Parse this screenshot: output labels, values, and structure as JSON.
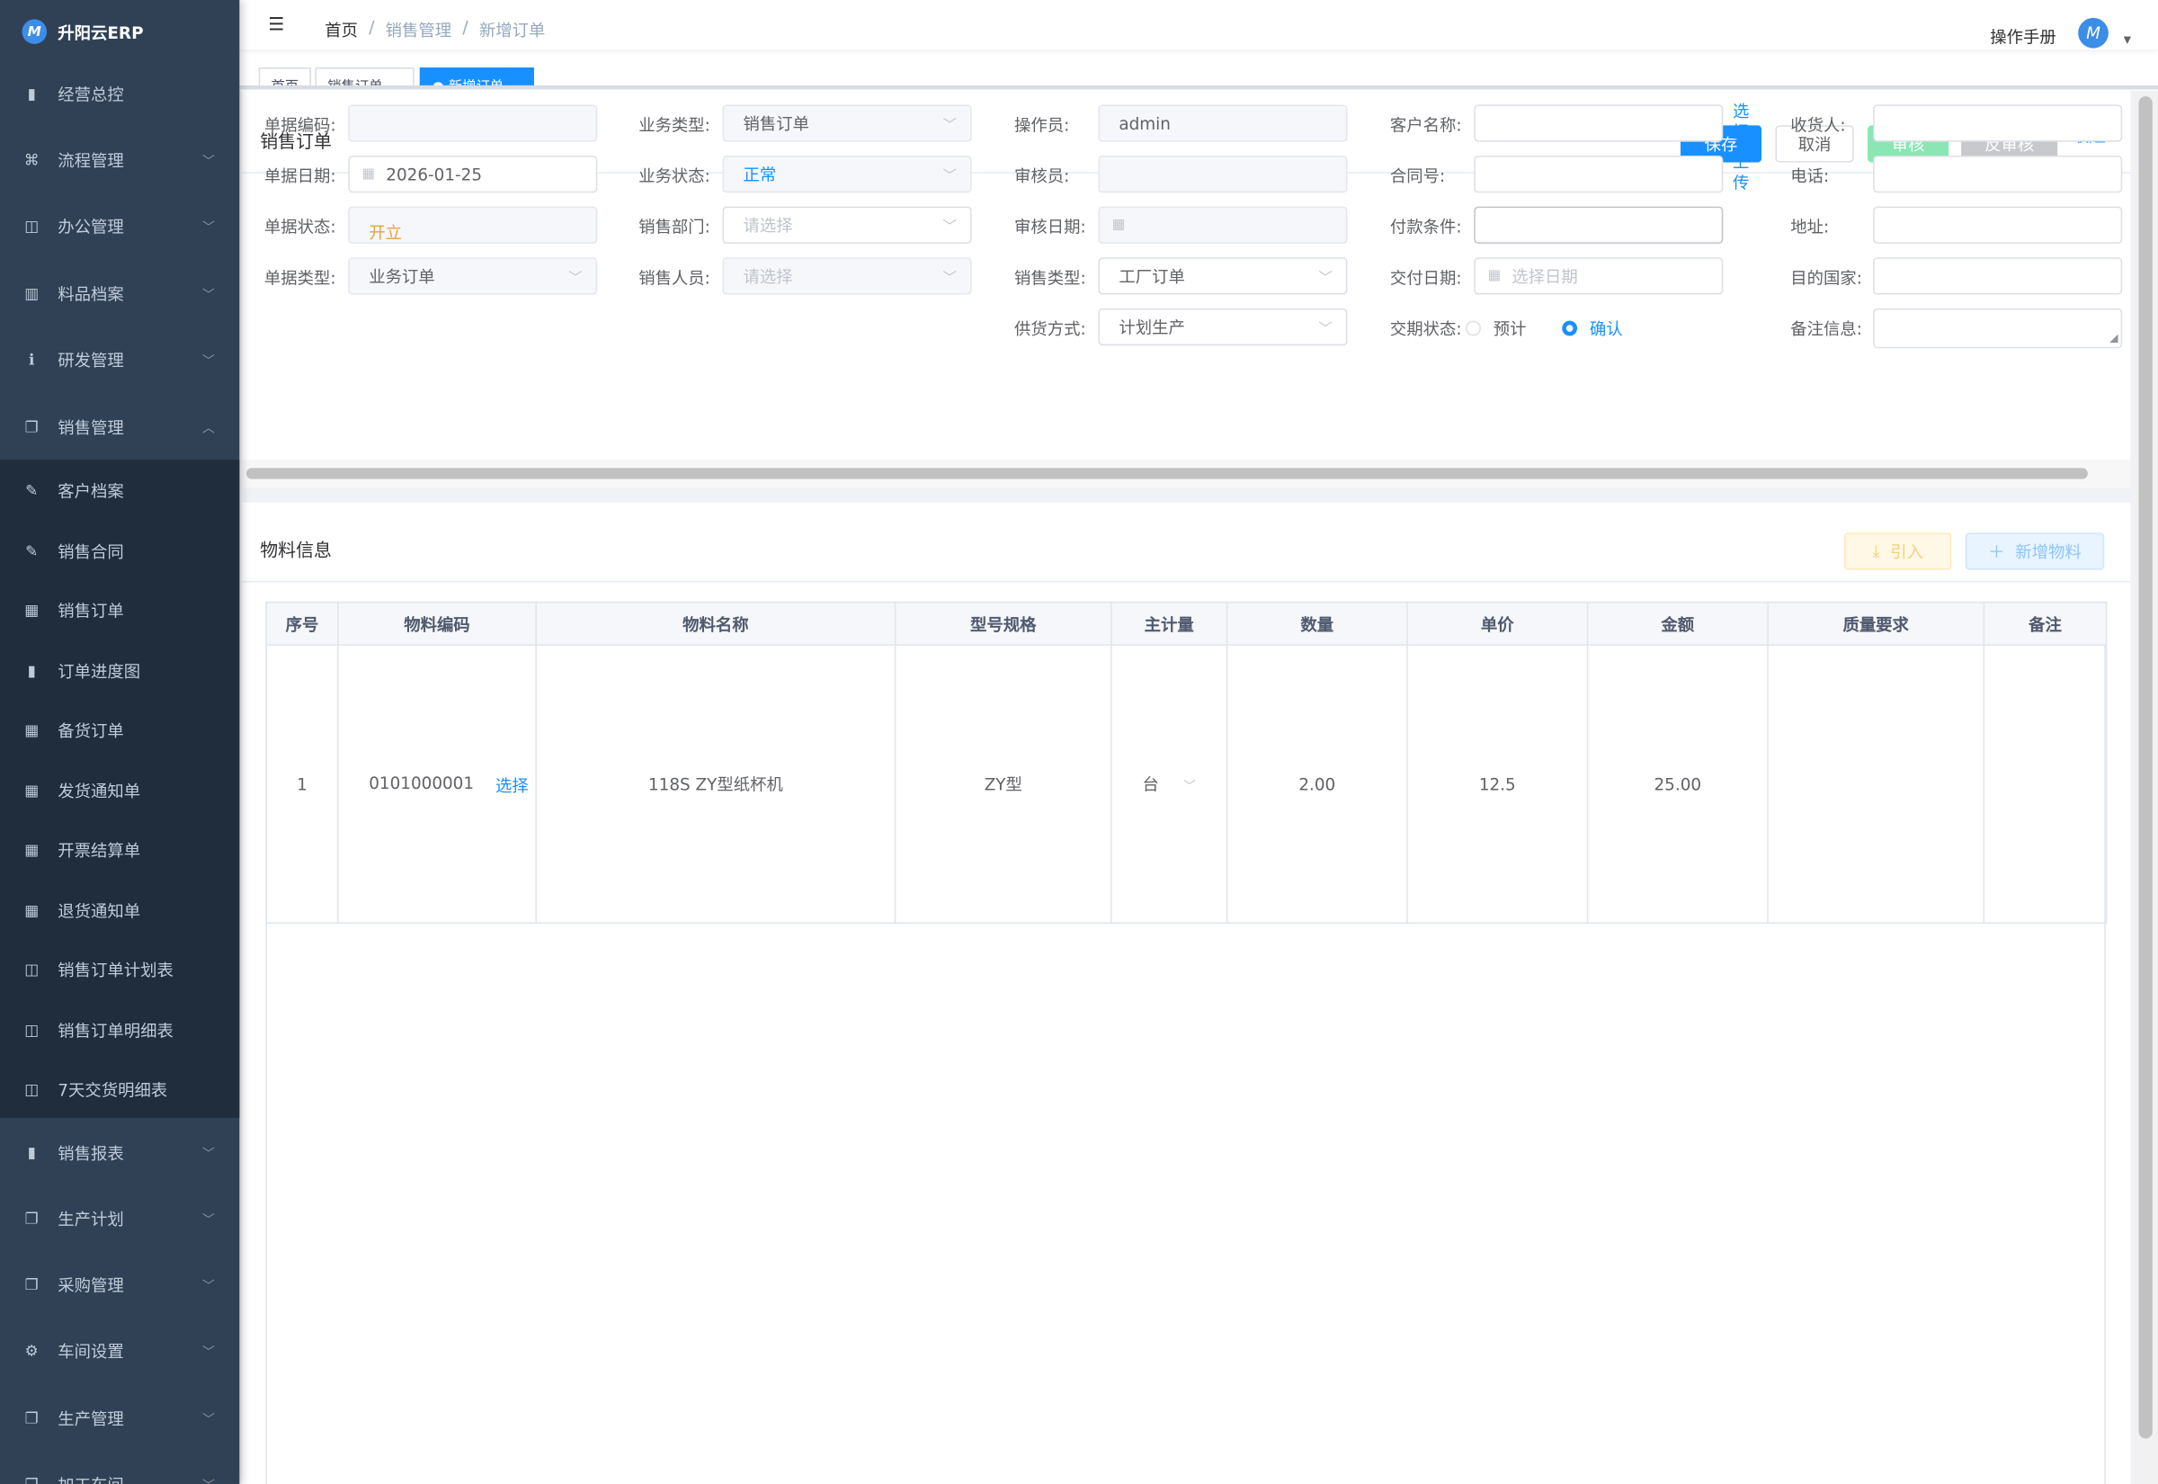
{
  "app": {
    "name": "升阳云ERP",
    "logo_letter": "M"
  },
  "sidebar": {
    "items": [
      {
        "label": "经营总控",
        "icon": "bar-chart-icon"
      },
      {
        "label": "流程管理",
        "icon": "flow-icon",
        "expandable": true
      },
      {
        "label": "办公管理",
        "icon": "office-icon",
        "expandable": true
      },
      {
        "label": "料品档案",
        "icon": "book-icon",
        "expandable": true
      },
      {
        "label": "研发管理",
        "icon": "info-icon",
        "expandable": true
      },
      {
        "label": "销售管理",
        "icon": "documents-icon",
        "expandable": true,
        "expanded": true
      }
    ],
    "sub_items": [
      {
        "label": "客户档案",
        "icon": "edit-doc-icon"
      },
      {
        "label": "销售合同",
        "icon": "edit-doc-icon"
      },
      {
        "label": "销售订单",
        "icon": "table-icon"
      },
      {
        "label": "订单进度图",
        "icon": "bar-chart-icon"
      },
      {
        "label": "备货订单",
        "icon": "table-icon"
      },
      {
        "label": "发货通知单",
        "icon": "table-icon"
      },
      {
        "label": "开票结算单",
        "icon": "table-icon"
      },
      {
        "label": "退货通知单",
        "icon": "table-icon"
      },
      {
        "label": "销售订单计划表",
        "icon": "book-open-icon"
      },
      {
        "label": "销售订单明细表",
        "icon": "book-open-icon"
      },
      {
        "label": "7天交货明细表",
        "icon": "book-open-icon"
      }
    ],
    "items_after": [
      {
        "label": "销售报表",
        "icon": "bar-chart-icon"
      },
      {
        "label": "生产计划",
        "icon": "documents-icon"
      },
      {
        "label": "采购管理",
        "icon": "documents-icon"
      },
      {
        "label": "车间设置",
        "icon": "gear-icon"
      },
      {
        "label": "生产管理",
        "icon": "documents-icon"
      },
      {
        "label": "加工车间",
        "icon": "documents-icon"
      }
    ]
  },
  "header": {
    "breadcrumb": [
      "首页",
      "销售管理",
      "新增订单"
    ],
    "manual": "操作手册"
  },
  "tabs": [
    {
      "label": "首页"
    },
    {
      "label": "销售订单"
    },
    {
      "label": "新增订单",
      "active": true
    }
  ],
  "order": {
    "title": "销售订单",
    "buttons": {
      "save": "保存",
      "cancel": "取消",
      "audit": "审核",
      "unaudit": "反审核",
      "collapse": "收起"
    },
    "fields": {
      "doc_code": {
        "label": "单据编码:",
        "value": ""
      },
      "doc_date": {
        "label": "单据日期:",
        "value": "2026-01-25"
      },
      "doc_status": {
        "label": "单据状态:",
        "value": "开立"
      },
      "doc_type": {
        "label": "单据类型:",
        "value": "业务订单"
      },
      "biz_type": {
        "label": "业务类型:",
        "value": "销售订单"
      },
      "biz_status": {
        "label": "业务状态:",
        "value": "正常"
      },
      "sales_dept": {
        "label": "销售部门:",
        "placeholder": "请选择"
      },
      "sales_person": {
        "label": "销售人员:",
        "placeholder": "请选择"
      },
      "operator": {
        "label": "操作员:",
        "value": "admin"
      },
      "auditor": {
        "label": "审核员:",
        "value": ""
      },
      "audit_date": {
        "label": "审核日期:",
        "value": ""
      },
      "sales_type": {
        "label": "销售类型:",
        "value": "工厂订单"
      },
      "supply_mode": {
        "label": "供货方式:",
        "value": "计划生产"
      },
      "customer": {
        "label": "客户名称:",
        "value": "",
        "link": "选择"
      },
      "contract": {
        "label": "合同号:",
        "value": "",
        "link": "上传"
      },
      "payment": {
        "label": "付款条件:",
        "value": ""
      },
      "delivery_date": {
        "label": "交付日期:",
        "placeholder": "选择日期"
      },
      "delivery_status": {
        "label": "交期状态:",
        "options": [
          "预计",
          "确认"
        ],
        "selected": "确认"
      },
      "receiver": {
        "label": "收货人:",
        "value": ""
      },
      "phone": {
        "label": "电话:",
        "value": ""
      },
      "address": {
        "label": "地址:",
        "value": ""
      },
      "country": {
        "label": "目的国家:",
        "value": ""
      },
      "remark": {
        "label": "备注信息:",
        "value": ""
      }
    }
  },
  "materials": {
    "title": "物料信息",
    "import": "引入",
    "add": "新增物料",
    "columns": [
      "序号",
      "物料编码",
      "物料名称",
      "型号规格",
      "主计量",
      "数量",
      "单价",
      "金额",
      "质量要求",
      "备注"
    ],
    "rows": [
      {
        "no": "1",
        "code": "0101000001",
        "select": "选择",
        "name": "118S ZY型纸杯机",
        "spec": "ZY型",
        "unit": "台",
        "qty": "2.00",
        "price": "12.5",
        "amount": "25.00",
        "quality": "",
        "remark": ""
      }
    ]
  },
  "colors": {
    "sidebar": "#304156",
    "submenu": "#1f2d3d",
    "primary": "#1890ff",
    "audit": "#8ae6b3",
    "unaudit": "#c8c9cc",
    "status_orange": "#e6a23c"
  }
}
